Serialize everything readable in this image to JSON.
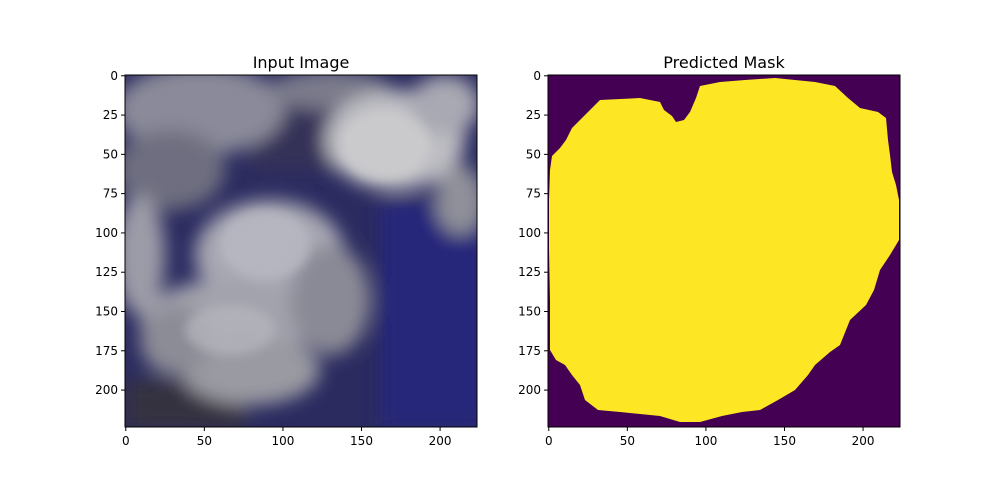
{
  "figure": {
    "panels": [
      {
        "id": "input",
        "title": "Input Image",
        "x_ticks": [
          "0",
          "50",
          "100",
          "150",
          "200"
        ],
        "y_ticks": [
          "0",
          "25",
          "50",
          "75",
          "100",
          "125",
          "150",
          "175",
          "200"
        ]
      },
      {
        "id": "mask",
        "title": "Predicted Mask",
        "x_ticks": [
          "0",
          "50",
          "100",
          "150",
          "200"
        ],
        "y_ticks": [
          "0",
          "25",
          "50",
          "75",
          "100",
          "125",
          "150",
          "175",
          "200"
        ]
      }
    ],
    "image_size": [
      224,
      224
    ],
    "colors": {
      "mask_background": "#440154",
      "mask_foreground": "#fde725",
      "sky_dark": "#2a2a6e",
      "cloud_light": "#b9b9c3"
    }
  }
}
